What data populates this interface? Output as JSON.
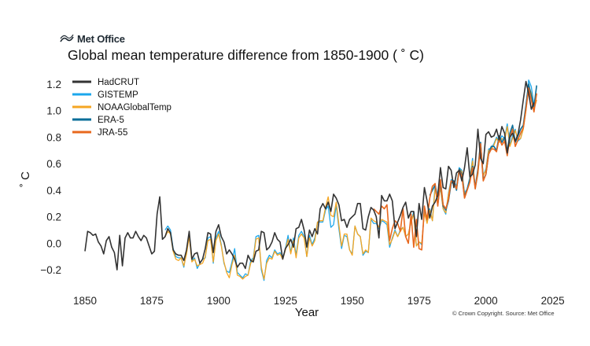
{
  "brand": {
    "logo_text": "Met Office",
    "icon": "met-office-swoosh-icon"
  },
  "credit": "© Crown Copyright. Source: Met Office",
  "chart_data": {
    "type": "line",
    "title": "Global mean temperature difference from 1850-1900 ( ˚ C)",
    "xlabel": "Year",
    "ylabel": "˚ C",
    "xlim": [
      1845,
      2026
    ],
    "ylim": [
      -0.3,
      1.3
    ],
    "x_ticks": [
      1850,
      1875,
      1900,
      1925,
      1950,
      1975,
      2000,
      2025
    ],
    "y_ticks": [
      -0.2,
      0.0,
      0.2,
      0.4,
      0.6,
      0.8,
      1.0,
      1.2
    ],
    "y_tick_labels": [
      "−0.2",
      "0.0",
      "0.2",
      "0.4",
      "0.6",
      "0.8",
      "1.0",
      "1.2"
    ],
    "grid": false,
    "legend_position": "top-left",
    "series": [
      {
        "name": "HadCRUT",
        "color": "#333333",
        "start": 1850,
        "values": [
          -0.06,
          0.09,
          0.08,
          0.06,
          0.07,
          0.01,
          -0.02,
          -0.08,
          0.02,
          0.05,
          -0.03,
          -0.07,
          -0.2,
          0.06,
          -0.17,
          0.04,
          0.08,
          0.04,
          0.04,
          0.09,
          0.05,
          0.02,
          0.06,
          0.04,
          -0.02,
          -0.08,
          -0.06,
          0.22,
          0.35,
          0.03,
          0.05,
          0.11,
          0.08,
          -0.05,
          -0.08,
          -0.09,
          -0.09,
          -0.13,
          -0.05,
          0.09,
          -0.12,
          -0.08,
          -0.07,
          -0.15,
          -0.12,
          -0.04,
          0.08,
          0.07,
          -0.07,
          0.09,
          0.14,
          0.05,
          0.01,
          -0.08,
          -0.05,
          -0.08,
          -0.12,
          -0.18,
          -0.15,
          -0.15,
          -0.19,
          -0.09,
          -0.13,
          -0.14,
          -0.06,
          -0.05,
          0.09,
          0.08,
          -0.05,
          -0.03,
          0.01,
          0.08,
          0.03,
          0.01,
          -0.12,
          -0.04,
          -0.01,
          0.03,
          -0.03,
          0.11,
          0.12,
          0.18,
          0.1,
          -0.03,
          0.1,
          0.05,
          0.11,
          0.07,
          0.26,
          0.3,
          0.26,
          0.31,
          0.24,
          0.37,
          0.34,
          0.29,
          0.17,
          0.18,
          0.12,
          0.18,
          0.2,
          0.22,
          0.3,
          0.3,
          0.11,
          0.1,
          0.2,
          0.27,
          0.25,
          0.2,
          0.04,
          0.36,
          0.32,
          0.32,
          0.37,
          0.32,
          0.11,
          0.16,
          0.21,
          0.27,
          0.31,
          0.19,
          0.24,
          0.24,
          0.05,
          0.3,
          0.18,
          0.42,
          0.32,
          0.19,
          0.28,
          0.31,
          0.36,
          0.57,
          0.42,
          0.41,
          0.58,
          0.55,
          0.42,
          0.53,
          0.55,
          0.47,
          0.57,
          0.72,
          0.5,
          0.52,
          0.59,
          0.86,
          0.64,
          0.6,
          0.82,
          0.84,
          0.8,
          0.81,
          0.86,
          0.78,
          0.88,
          0.83,
          0.68,
          0.8,
          0.83,
          0.77,
          0.82,
          0.93,
          1.08,
          1.22,
          1.13,
          1.01,
          1.06
        ],
        "line_width": 1.6
      },
      {
        "name": "GISTEMP",
        "color": "#1ca7ec",
        "start": 1880,
        "values": [
          0.1,
          0.13,
          0.1,
          -0.04,
          -0.1,
          -0.11,
          -0.11,
          -0.18,
          -0.06,
          0.08,
          -0.13,
          -0.11,
          -0.19,
          -0.15,
          -0.12,
          -0.11,
          0.04,
          0.05,
          -0.15,
          0.04,
          0.09,
          -0.01,
          -0.15,
          -0.21,
          -0.22,
          -0.14,
          -0.04,
          -0.22,
          -0.24,
          -0.26,
          -0.23,
          -0.24,
          -0.13,
          -0.11,
          0.05,
          0.06,
          -0.2,
          -0.28,
          -0.13,
          -0.09,
          -0.11,
          -0.05,
          -0.08,
          -0.07,
          -0.11,
          -0.04,
          0.06,
          -0.07,
          0.04,
          -0.09,
          0.06,
          0.09,
          0.05,
          -0.1,
          0.06,
          -0.01,
          0.04,
          0.16,
          0.16,
          0.16,
          0.25,
          0.28,
          0.12,
          0.14,
          0.29,
          0.11,
          -0.04,
          0.06,
          0.05,
          -0.05,
          -0.08,
          0.13,
          0.07,
          0.05,
          -0.09,
          -0.06,
          -0.07,
          0.18,
          0.15,
          0.15,
          0.11,
          0.17,
          0.16,
          0.14,
          -0.03,
          0.04,
          0.1,
          0.05,
          0.1,
          0.12,
          0.05,
          0.07,
          0.16,
          0.24,
          -0.02,
          0.01,
          -0.01,
          0.24,
          0.16,
          0.26,
          0.17,
          0.44,
          0.36,
          0.43,
          0.26,
          0.22,
          0.38,
          0.48,
          0.47,
          0.43,
          0.57,
          0.55,
          0.38,
          0.41,
          0.5,
          0.64,
          0.41,
          0.52,
          0.76,
          0.51,
          0.56,
          0.71,
          0.72,
          0.75,
          0.8,
          0.77,
          0.81,
          0.79,
          0.9,
          0.74,
          0.81,
          0.86,
          0.77,
          0.79,
          0.87,
          1.03,
          1.23,
          1.18,
          1.04,
          1.12
        ],
        "line_width": 1.3
      },
      {
        "name": "NOAAGlobalTemp",
        "color": "#f5a623",
        "start": 1880,
        "values": [
          0.05,
          0.09,
          0.07,
          -0.06,
          -0.12,
          -0.13,
          -0.11,
          -0.17,
          -0.08,
          0.05,
          -0.14,
          -0.12,
          -0.17,
          -0.16,
          -0.15,
          -0.1,
          0.02,
          0.03,
          -0.14,
          0.02,
          0.07,
          -0.02,
          -0.14,
          -0.22,
          -0.26,
          -0.16,
          -0.09,
          -0.24,
          -0.25,
          -0.27,
          -0.25,
          -0.24,
          -0.15,
          -0.12,
          0.03,
          0.04,
          -0.18,
          -0.27,
          -0.15,
          -0.11,
          -0.12,
          -0.06,
          -0.09,
          -0.08,
          -0.12,
          -0.05,
          0.03,
          -0.08,
          0.02,
          -0.11,
          0.04,
          0.07,
          0.04,
          -0.1,
          0.04,
          -0.02,
          0.02,
          0.16,
          0.17,
          0.17,
          0.27,
          0.35,
          0.21,
          0.2,
          0.31,
          0.14,
          -0.02,
          0.07,
          0.07,
          -0.05,
          -0.09,
          0.13,
          0.07,
          0.05,
          -0.08,
          -0.05,
          -0.07,
          0.19,
          0.17,
          0.16,
          0.12,
          0.18,
          0.17,
          0.16,
          -0.01,
          0.03,
          0.09,
          0.05,
          0.09,
          0.12,
          0.05,
          0.07,
          0.16,
          0.22,
          -0.02,
          0.01,
          0.0,
          0.23,
          0.15,
          0.25,
          0.17,
          0.41,
          0.35,
          0.41,
          0.26,
          0.23,
          0.37,
          0.47,
          0.45,
          0.41,
          0.56,
          0.54,
          0.37,
          0.4,
          0.49,
          0.62,
          0.42,
          0.52,
          0.73,
          0.51,
          0.55,
          0.7,
          0.71,
          0.74,
          0.79,
          0.76,
          0.79,
          0.77,
          0.88,
          0.73,
          0.79,
          0.85,
          0.78,
          0.79,
          0.86,
          1.0,
          1.19,
          1.13,
          1.01,
          1.08
        ],
        "line_width": 1.3
      },
      {
        "name": "ERA-5",
        "color": "#0a6e99",
        "start": 1979,
        "values": [
          0.36,
          0.4,
          0.44,
          0.29,
          0.46,
          0.28,
          0.25,
          0.32,
          0.45,
          0.47,
          0.4,
          0.56,
          0.52,
          0.35,
          0.41,
          0.48,
          0.58,
          0.42,
          0.56,
          0.76,
          0.48,
          0.52,
          0.67,
          0.73,
          0.73,
          0.7,
          0.81,
          0.76,
          0.8,
          0.69,
          0.83,
          0.89,
          0.76,
          0.81,
          0.86,
          0.89,
          1.04,
          1.2,
          1.11,
          1.03,
          1.19
        ],
        "line_width": 1.6
      },
      {
        "name": "JRA-55",
        "color": "#e8681e",
        "start": 1958,
        "values": [
          0.26,
          0.24,
          0.22,
          0.28,
          0.26,
          0.29,
          0.02,
          0.11,
          0.17,
          0.15,
          0.09,
          0.26,
          0.05,
          0.0,
          0.22,
          -0.03,
          0.18,
          -0.04,
          -0.05,
          0.28,
          0.18,
          0.34,
          0.43,
          0.45,
          0.28,
          0.48,
          0.29,
          0.26,
          0.33,
          0.47,
          0.46,
          0.41,
          0.55,
          0.51,
          0.34,
          0.4,
          0.46,
          0.57,
          0.41,
          0.54,
          0.75,
          0.47,
          0.52,
          0.67,
          0.71,
          0.71,
          0.69,
          0.79,
          0.74,
          0.77,
          0.66,
          0.8,
          0.86,
          0.73,
          0.78,
          0.83,
          0.87,
          1.01,
          1.17,
          1.08,
          0.99,
          1.13
        ],
        "line_width": 1.6
      }
    ]
  }
}
